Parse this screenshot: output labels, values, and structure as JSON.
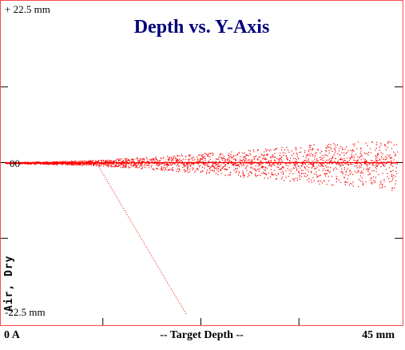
{
  "chart_data": {
    "type": "scatter",
    "title": "Depth vs. Y-Axis",
    "y_top_label": "+ 22.5 mm",
    "y_zero_label": "00",
    "y_bottom_label": "-22.5 mm",
    "side_label": "Air, Dry",
    "x_start_label": "0 A",
    "x_axis_label": "-- Target Depth --",
    "x_end_label": "45 mm",
    "xlim": [
      0,
      45
    ],
    "ylim": [
      -22.5,
      22.5
    ],
    "grid": false,
    "series": [
      {
        "band_envelope_x": [
          0,
          5,
          10,
          15,
          20,
          25,
          30,
          35,
          40,
          45
        ],
        "band_upper_y": [
          0.1,
          0.2,
          0.4,
          0.8,
          1.2,
          1.6,
          2.2,
          2.7,
          3.1,
          3.5
        ],
        "band_lower_y": [
          -0.1,
          -0.2,
          -0.4,
          -0.8,
          -1.3,
          -1.8,
          -2.4,
          -3.0,
          -3.6,
          -4.2
        ],
        "diagonal_x": [
          10.5,
          20.8
        ],
        "diagonal_y": [
          0,
          -22.5
        ]
      }
    ],
    "colors": {
      "points": "#ff0000",
      "title": "#00007a",
      "frame": "#ff4a4a"
    }
  }
}
